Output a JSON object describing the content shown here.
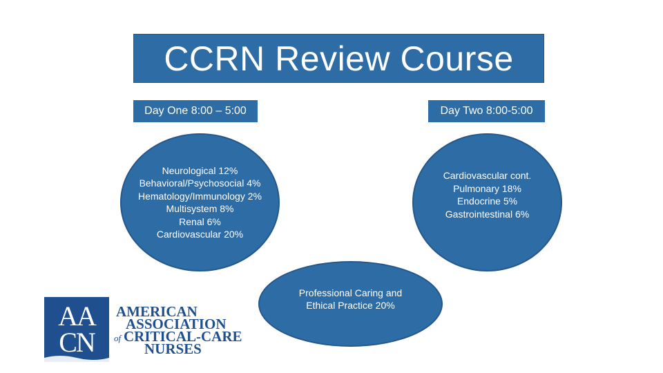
{
  "title": "CCRN Review Course",
  "day_one": {
    "label": "Day One 8:00 – 5:00",
    "topics": [
      "Neurological 12%",
      "Behavioral/Psychosocial 4%",
      "Hematology/Immunology 2%",
      "Multisystem 8%",
      "Renal 6%",
      "Cardiovascular 20%"
    ]
  },
  "day_two": {
    "label": "Day Two 8:00-5:00",
    "topics": [
      "Cardiovascular cont.",
      "Pulmonary 18%",
      "Endocrine 5%",
      "Gastrointestinal 6%"
    ]
  },
  "shared": {
    "topics": [
      "Professional Caring and",
      "Ethical Practice 20%"
    ]
  },
  "logo": {
    "monogram": [
      "AA",
      "CN"
    ],
    "lines": [
      "AMERICAN",
      "ASSOCIATION",
      "CRITICAL-CARE",
      "NURSES"
    ],
    "of": "of"
  },
  "colors": {
    "accent": "#2e6ca6",
    "logo": "#1f4f8f"
  }
}
